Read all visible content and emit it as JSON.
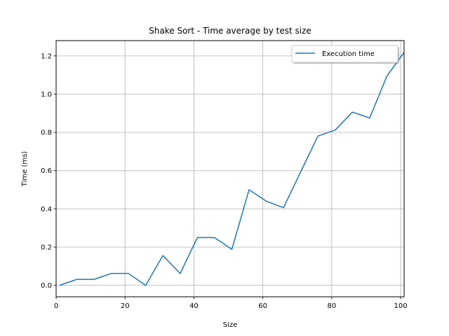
{
  "chart_data": {
    "type": "line",
    "title": "Shake Sort - Time average by test size",
    "xlabel": "Size",
    "ylabel": "Time (ms)",
    "xlim": [
      0,
      101
    ],
    "ylim": [
      -0.06,
      1.28
    ],
    "xticks": [
      0,
      20,
      40,
      60,
      80,
      100
    ],
    "yticks": [
      0.0,
      0.2,
      0.4,
      0.6,
      0.8,
      1.0,
      1.2
    ],
    "xtick_labels": [
      "0",
      "20",
      "40",
      "60",
      "80",
      "100"
    ],
    "ytick_labels": [
      "0.0",
      "0.2",
      "0.4",
      "0.6",
      "0.8",
      "1.0",
      "1.2"
    ],
    "grid": true,
    "legend_position": "upper right",
    "series": [
      {
        "name": "Execution time",
        "color": "#1f77b4",
        "x": [
          1,
          6,
          11,
          16,
          21,
          26,
          31,
          36,
          41,
          46,
          51,
          56,
          61,
          66,
          71,
          76,
          81,
          86,
          91,
          96,
          101
        ],
        "y": [
          0.0,
          0.031,
          0.031,
          0.062,
          0.062,
          0.0,
          0.156,
          0.062,
          0.25,
          0.25,
          0.188,
          0.5,
          0.44,
          0.406,
          0.594,
          0.781,
          0.812,
          0.906,
          0.875,
          1.094,
          1.219
        ]
      }
    ]
  }
}
